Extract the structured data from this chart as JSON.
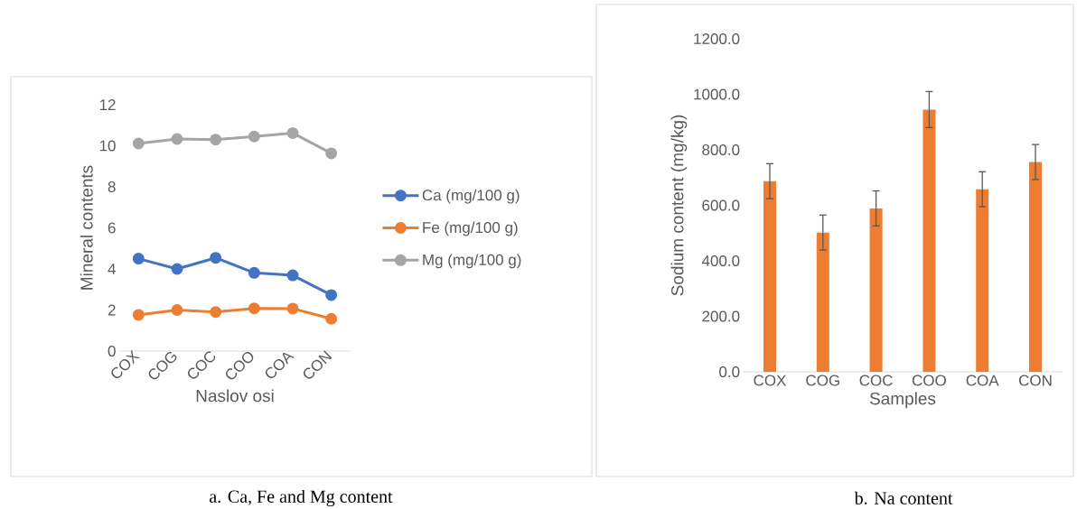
{
  "chart_data": [
    {
      "type": "line",
      "xlabel": "Naslov osi",
      "ylabel": "Mineral contents",
      "categories": [
        "COX",
        "COG",
        "COC",
        "COO",
        "COA",
        "CON"
      ],
      "series": [
        {
          "name": "Ca (mg/100 g)",
          "color": "#4472c4",
          "values": [
            4.5,
            4.0,
            4.54,
            3.81,
            3.69,
            2.73
          ]
        },
        {
          "name": "Fe (mg/100 g)",
          "color": "#ed7d31",
          "values": [
            1.76,
            2.0,
            1.9,
            2.08,
            2.07,
            1.57
          ]
        },
        {
          "name": "Mg (mg/100 g)",
          "color": "#a5a5a5",
          "values": [
            10.11,
            10.33,
            10.3,
            10.45,
            10.62,
            9.63
          ]
        }
      ],
      "ylim": [
        0,
        12
      ],
      "yticks": [
        0,
        2,
        4,
        6,
        8,
        10,
        12
      ],
      "marker": "circle",
      "legend": "right",
      "annotations": [
        "a. Ca, Fe and Mg content"
      ]
    },
    {
      "type": "bar",
      "xlabel": "Samples",
      "ylabel": "Sodium content (mg/kg)",
      "categories": [
        "COX",
        "COG",
        "COC",
        "COO",
        "COA",
        "CON"
      ],
      "values": [
        687,
        502,
        589,
        945,
        658,
        756
      ],
      "color": "#ed7d31",
      "errors": [
        63,
        63,
        63,
        65,
        63,
        63
      ],
      "ylim": [
        0,
        1200
      ],
      "yticks": [
        {
          "value": 0,
          "label": "0.0"
        },
        {
          "value": 200,
          "label": "200.0"
        },
        {
          "value": 400,
          "label": "400.0"
        },
        {
          "value": 600,
          "label": "600.0"
        },
        {
          "value": 800,
          "label": "800.0"
        },
        {
          "value": 1000,
          "label": "1000.0"
        },
        {
          "value": 1200,
          "label": "1200.0"
        }
      ],
      "annotations": [
        "b. Na content"
      ]
    }
  ]
}
